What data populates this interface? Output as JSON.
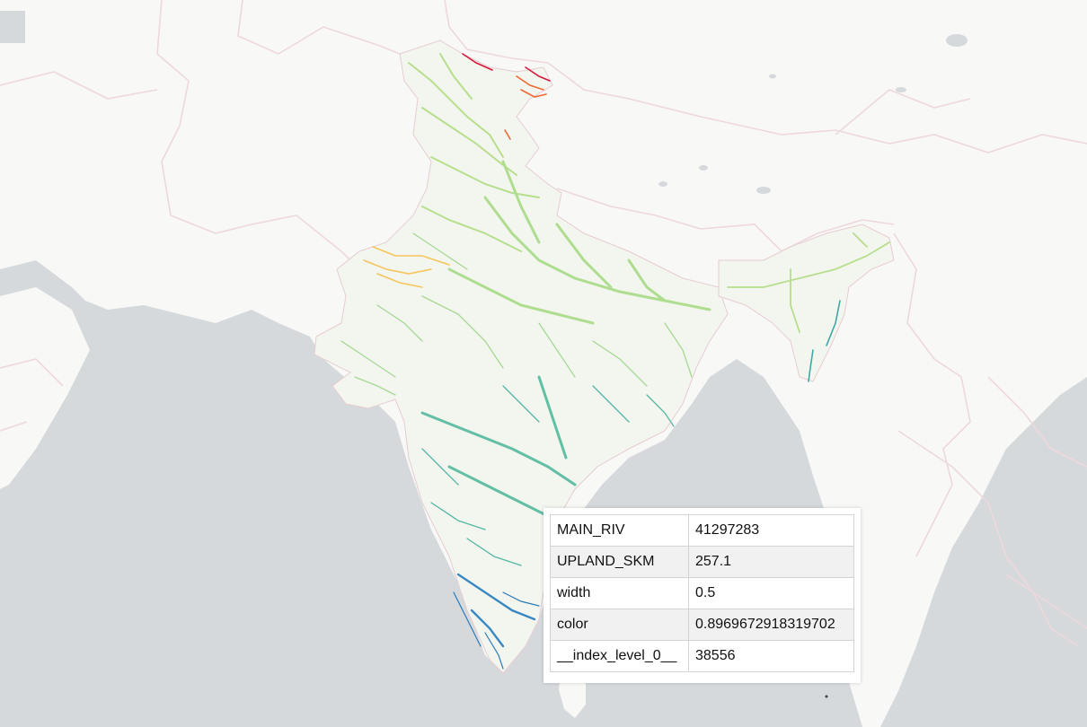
{
  "map": {
    "colors": {
      "water": "#d6d9dc",
      "land": "#f8f8f7",
      "border": "#eed8dc",
      "river_north": "#b7de8c",
      "river_thar": "#f6c45c",
      "river_hot": "#d7193c",
      "river_mid": "#55b6a4",
      "river_south": "#3a88c3"
    }
  },
  "tooltip": {
    "rows": [
      {
        "key": "MAIN_RIV",
        "value": "41297283"
      },
      {
        "key": "UPLAND_SKM",
        "value": "257.1"
      },
      {
        "key": "width",
        "value": "0.5"
      },
      {
        "key": "color",
        "value": "0.8969672918319702"
      },
      {
        "key": "__index_level_0__",
        "value": "38556"
      }
    ]
  }
}
